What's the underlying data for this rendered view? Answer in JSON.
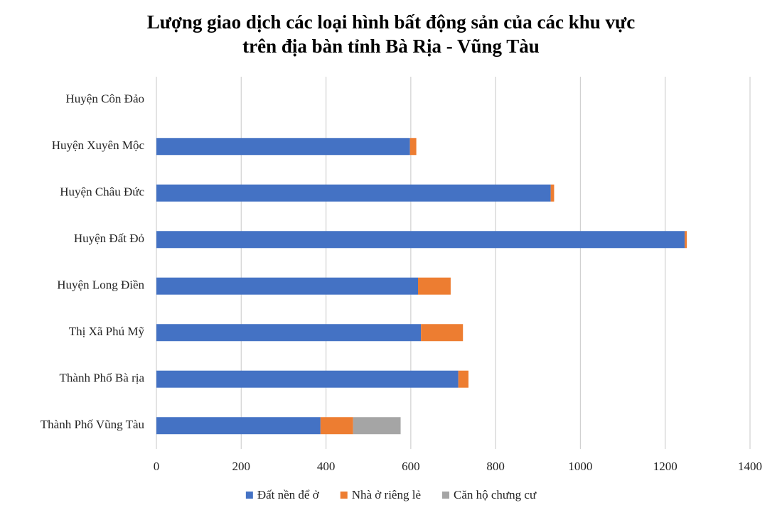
{
  "chart_data": {
    "type": "bar",
    "orientation": "horizontal",
    "stacked": true,
    "title": [
      "Lượng giao dịch các loại hình bất động sản của các khu vực",
      "trên địa bàn tỉnh Bà Rịa - Vũng Tàu"
    ],
    "categories": [
      "Huyện Côn Đảo",
      "Huyện Xuyên Mộc",
      "Huyện Châu Đức",
      "Huyện Đất Đỏ",
      "Huyện Long Điền",
      "Thị Xã Phú Mỹ",
      "Thành Phố Bà rịa",
      "Thành Phố Vũng Tàu"
    ],
    "series": [
      {
        "name": "Đất nền để ở",
        "color": "#4472c4",
        "values": [
          0,
          598,
          930,
          1246,
          617,
          624,
          712,
          387
        ]
      },
      {
        "name": "Nhà ở riêng lẻ",
        "color": "#ed7d31",
        "values": [
          0,
          15,
          8,
          5,
          77,
          99,
          24,
          77
        ]
      },
      {
        "name": "Căn hộ chưng cư",
        "color": "#a5a5a5",
        "values": [
          0,
          0,
          0,
          0,
          0,
          0,
          0,
          112
        ]
      }
    ],
    "xlim": [
      0,
      1400
    ],
    "xticks": [
      0,
      200,
      400,
      600,
      800,
      1000,
      1200,
      1400
    ],
    "grid": true,
    "legend": "bottom"
  }
}
